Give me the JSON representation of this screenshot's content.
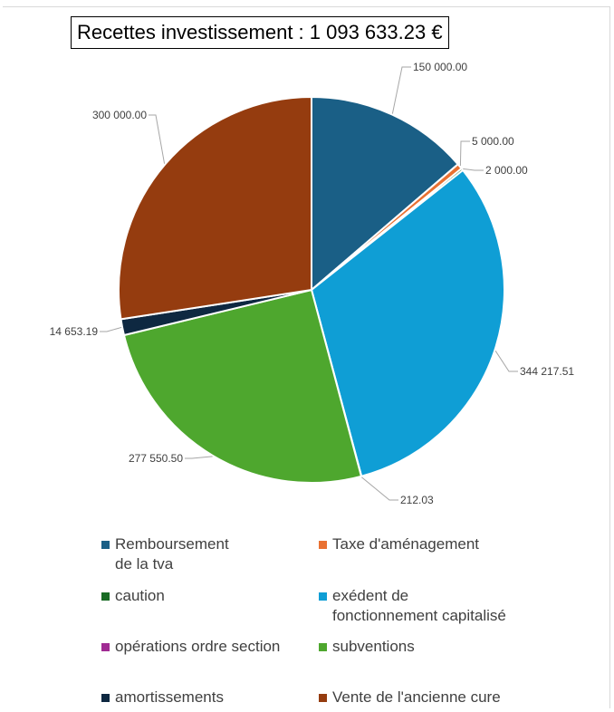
{
  "chart_data": {
    "type": "pie",
    "title": "Recettes investissement : 1 093 633.23 €",
    "slices": [
      {
        "name": "Remboursement de la tva",
        "value": 150000.0,
        "label": "150 000.00",
        "color": "#1a5f86"
      },
      {
        "name": "Taxe d'aménagement",
        "value": 5000.0,
        "label": "5 000.00",
        "color": "#e97132"
      },
      {
        "name": "caution",
        "value": 2000.0,
        "label": "2 000.00",
        "color": "#196b24"
      },
      {
        "name": "exédent de fonctionnement capitalisé",
        "value": 344217.51,
        "label": "344 217.51",
        "color": "#0f9ed5"
      },
      {
        "name": "opérations ordre section",
        "value": 212.03,
        "label": "212.03",
        "color": "#a02b93"
      },
      {
        "name": "subventions",
        "value": 277550.5,
        "label": "277 550.50",
        "color": "#4ea72e"
      },
      {
        "name": "amortissements",
        "value": 14653.19,
        "label": "14 653.19",
        "color": "#0e2841"
      },
      {
        "name": "Vente de l'ancienne cure",
        "value": 300000.0,
        "label": "300 000.00",
        "color": "#953c0f"
      }
    ],
    "legend": {
      "placement": "bottom",
      "items": [
        {
          "text": "Remboursement\nde la tva",
          "color": "#1a5f86"
        },
        {
          "text": "Taxe d'aménagement",
          "color": "#e97132"
        },
        {
          "text": "caution",
          "color": "#196b24"
        },
        {
          "text": "exédent de\nfonctionnement capitalisé",
          "color": "#0f9ed5"
        },
        {
          "text": "opérations ordre section",
          "color": "#a02b93"
        },
        {
          "text": "subventions",
          "color": "#4ea72e"
        },
        {
          "text": "amortissements",
          "color": "#0e2841"
        },
        {
          "text": "Vente de l'ancienne cure",
          "color": "#953c0f"
        }
      ]
    }
  }
}
